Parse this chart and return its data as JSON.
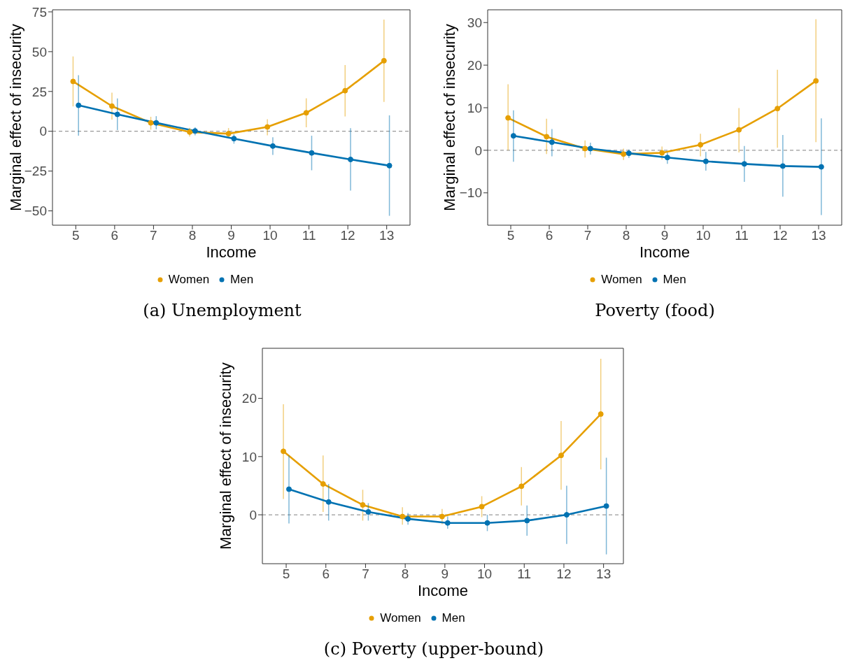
{
  "chart_data": [
    {
      "type": "line",
      "title": "(a) Unemployment",
      "xlabel": "Income",
      "ylabel": "Marginal effect of insecurity",
      "xlim": [
        4.4,
        13.6
      ],
      "xticks": [
        5,
        6,
        7,
        8,
        9,
        10,
        11,
        12,
        13
      ],
      "ylim": [
        -59,
        76.3
      ],
      "yticks": [
        -50,
        -25,
        0,
        25,
        50,
        75
      ],
      "grid": false,
      "legend": "bottom",
      "marker": "circle",
      "ref_lines": [
        {
          "axis": "y",
          "value": 0,
          "color": "#999999",
          "line_style": "dashed"
        }
      ],
      "series": [
        {
          "name": "Women",
          "color": "#e69f00",
          "x": [
            4.93,
            5.93,
            6.93,
            7.93,
            8.93,
            9.93,
            10.93,
            11.93,
            12.93
          ],
          "values": [
            31.3,
            15.8,
            5.3,
            -0.5,
            -1.5,
            2.7,
            11.6,
            25.5,
            44.3
          ],
          "errors": [
            [
              15.6,
              47
            ],
            [
              7.3,
              24.2
            ],
            [
              1,
              9.1
            ],
            [
              -3.3,
              2.2
            ],
            [
              -3.6,
              2
            ],
            [
              -2.5,
              7.6
            ],
            [
              2.5,
              20.7
            ],
            [
              9.3,
              41.6
            ],
            [
              18.4,
              70.1
            ]
          ]
        },
        {
          "name": "Men",
          "color": "#0072b2",
          "x": [
            5.07,
            6.07,
            7.07,
            8.07,
            9.07,
            10.07,
            11.07,
            12.07,
            13.07
          ],
          "values": [
            16.3,
            10.6,
            5.3,
            0.2,
            -4.6,
            -9.3,
            -13.6,
            -17.7,
            -21.6
          ],
          "errors": [
            [
              -2.8,
              35.2
            ],
            [
              0.7,
              20.6
            ],
            [
              1.2,
              9.5
            ],
            [
              -2.5,
              2.5
            ],
            [
              -7.8,
              -1.8
            ],
            [
              -14.8,
              -3.8
            ],
            [
              -24.5,
              -2.8
            ],
            [
              -37.3,
              2
            ],
            [
              -53.1,
              10
            ]
          ]
        }
      ]
    },
    {
      "type": "line",
      "title": "Poverty (food)",
      "xlabel": "Income",
      "ylabel": "Marginal effect of insecurity",
      "xlim": [
        4.4,
        13.6
      ],
      "xticks": [
        5,
        6,
        7,
        8,
        9,
        10,
        11,
        12,
        13
      ],
      "ylim": [
        -17.6,
        33
      ],
      "yticks": [
        -10,
        0,
        10,
        20,
        30
      ],
      "grid": false,
      "legend": "bottom",
      "marker": "circle",
      "ref_lines": [
        {
          "axis": "y",
          "value": 0,
          "color": "#999999",
          "line_style": "dashed"
        }
      ],
      "series": [
        {
          "name": "Women",
          "color": "#e69f00",
          "x": [
            4.93,
            5.93,
            6.93,
            7.93,
            8.93,
            9.93,
            10.93,
            11.93,
            12.93
          ],
          "values": [
            7.6,
            3.2,
            0.4,
            -0.9,
            -0.6,
            1.3,
            4.8,
            9.8,
            16.3
          ],
          "errors": [
            [
              0,
              15.5
            ],
            [
              -0.9,
              7.4
            ],
            [
              -1.7,
              2.3
            ],
            [
              -2.3,
              0.4
            ],
            [
              -2.2,
              0.9
            ],
            [
              -1.4,
              3.9
            ],
            [
              -0.5,
              9.9
            ],
            [
              0.6,
              18.9
            ],
            [
              1.9,
              30.8
            ]
          ]
        },
        {
          "name": "Men",
          "color": "#0072b2",
          "x": [
            5.07,
            6.07,
            7.07,
            8.07,
            9.07,
            10.07,
            11.07,
            12.07,
            13.07
          ],
          "values": [
            3.4,
            1.9,
            0.4,
            -0.7,
            -1.7,
            -2.6,
            -3.2,
            -3.7,
            -3.9
          ],
          "errors": [
            [
              -2.7,
              9.4
            ],
            [
              -1.4,
              5
            ],
            [
              -1,
              1.8
            ],
            [
              -1.8,
              0.2
            ],
            [
              -3.2,
              -0.5
            ],
            [
              -4.8,
              -0.4
            ],
            [
              -7.4,
              1
            ],
            [
              -10.9,
              3.6
            ],
            [
              -15.2,
              7.5
            ]
          ]
        }
      ]
    },
    {
      "type": "line",
      "title": "(c) Poverty (upper-bound)",
      "xlabel": "Income",
      "ylabel": "Marginal effect of insecurity",
      "xlim": [
        4.4,
        13.5
      ],
      "xticks": [
        5,
        6,
        7,
        8,
        9,
        10,
        11,
        12,
        13
      ],
      "ylim": [
        -8.4,
        28.6
      ],
      "yticks": [
        0,
        10,
        20
      ],
      "grid": false,
      "legend": "bottom",
      "marker": "circle",
      "ref_lines": [
        {
          "axis": "y",
          "value": 0,
          "color": "#999999",
          "line_style": "dashed"
        }
      ],
      "series": [
        {
          "name": "Women",
          "color": "#e69f00",
          "x": [
            4.93,
            5.93,
            6.93,
            7.93,
            8.93,
            9.93,
            10.93,
            11.93,
            12.93
          ],
          "values": [
            10.9,
            5.3,
            1.7,
            -0.3,
            -0.3,
            1.4,
            4.9,
            10.2,
            17.3
          ],
          "errors": [
            [
              2.7,
              19
            ],
            [
              0.5,
              10.2
            ],
            [
              -1,
              4.3
            ],
            [
              -1.7,
              1.3
            ],
            [
              -1.6,
              1
            ],
            [
              -0.4,
              3.2
            ],
            [
              1.6,
              8.2
            ],
            [
              4.3,
              16.1
            ],
            [
              7.8,
              26.8
            ]
          ]
        },
        {
          "name": "Men",
          "color": "#0072b2",
          "x": [
            5.07,
            6.07,
            7.07,
            8.07,
            9.07,
            10.07,
            11.07,
            12.07,
            13.07
          ],
          "values": [
            4.4,
            2.2,
            0.5,
            -0.7,
            -1.4,
            -1.4,
            -1,
            0,
            1.5
          ],
          "errors": [
            [
              -1.5,
              10.2
            ],
            [
              -1,
              5.3
            ],
            [
              -1,
              2
            ],
            [
              -1.7,
              0.3
            ],
            [
              -2.4,
              -0.3
            ],
            [
              -2.8,
              0
            ],
            [
              -3.6,
              1.6
            ],
            [
              -5,
              5
            ],
            [
              -6.8,
              9.8
            ]
          ]
        }
      ]
    }
  ]
}
